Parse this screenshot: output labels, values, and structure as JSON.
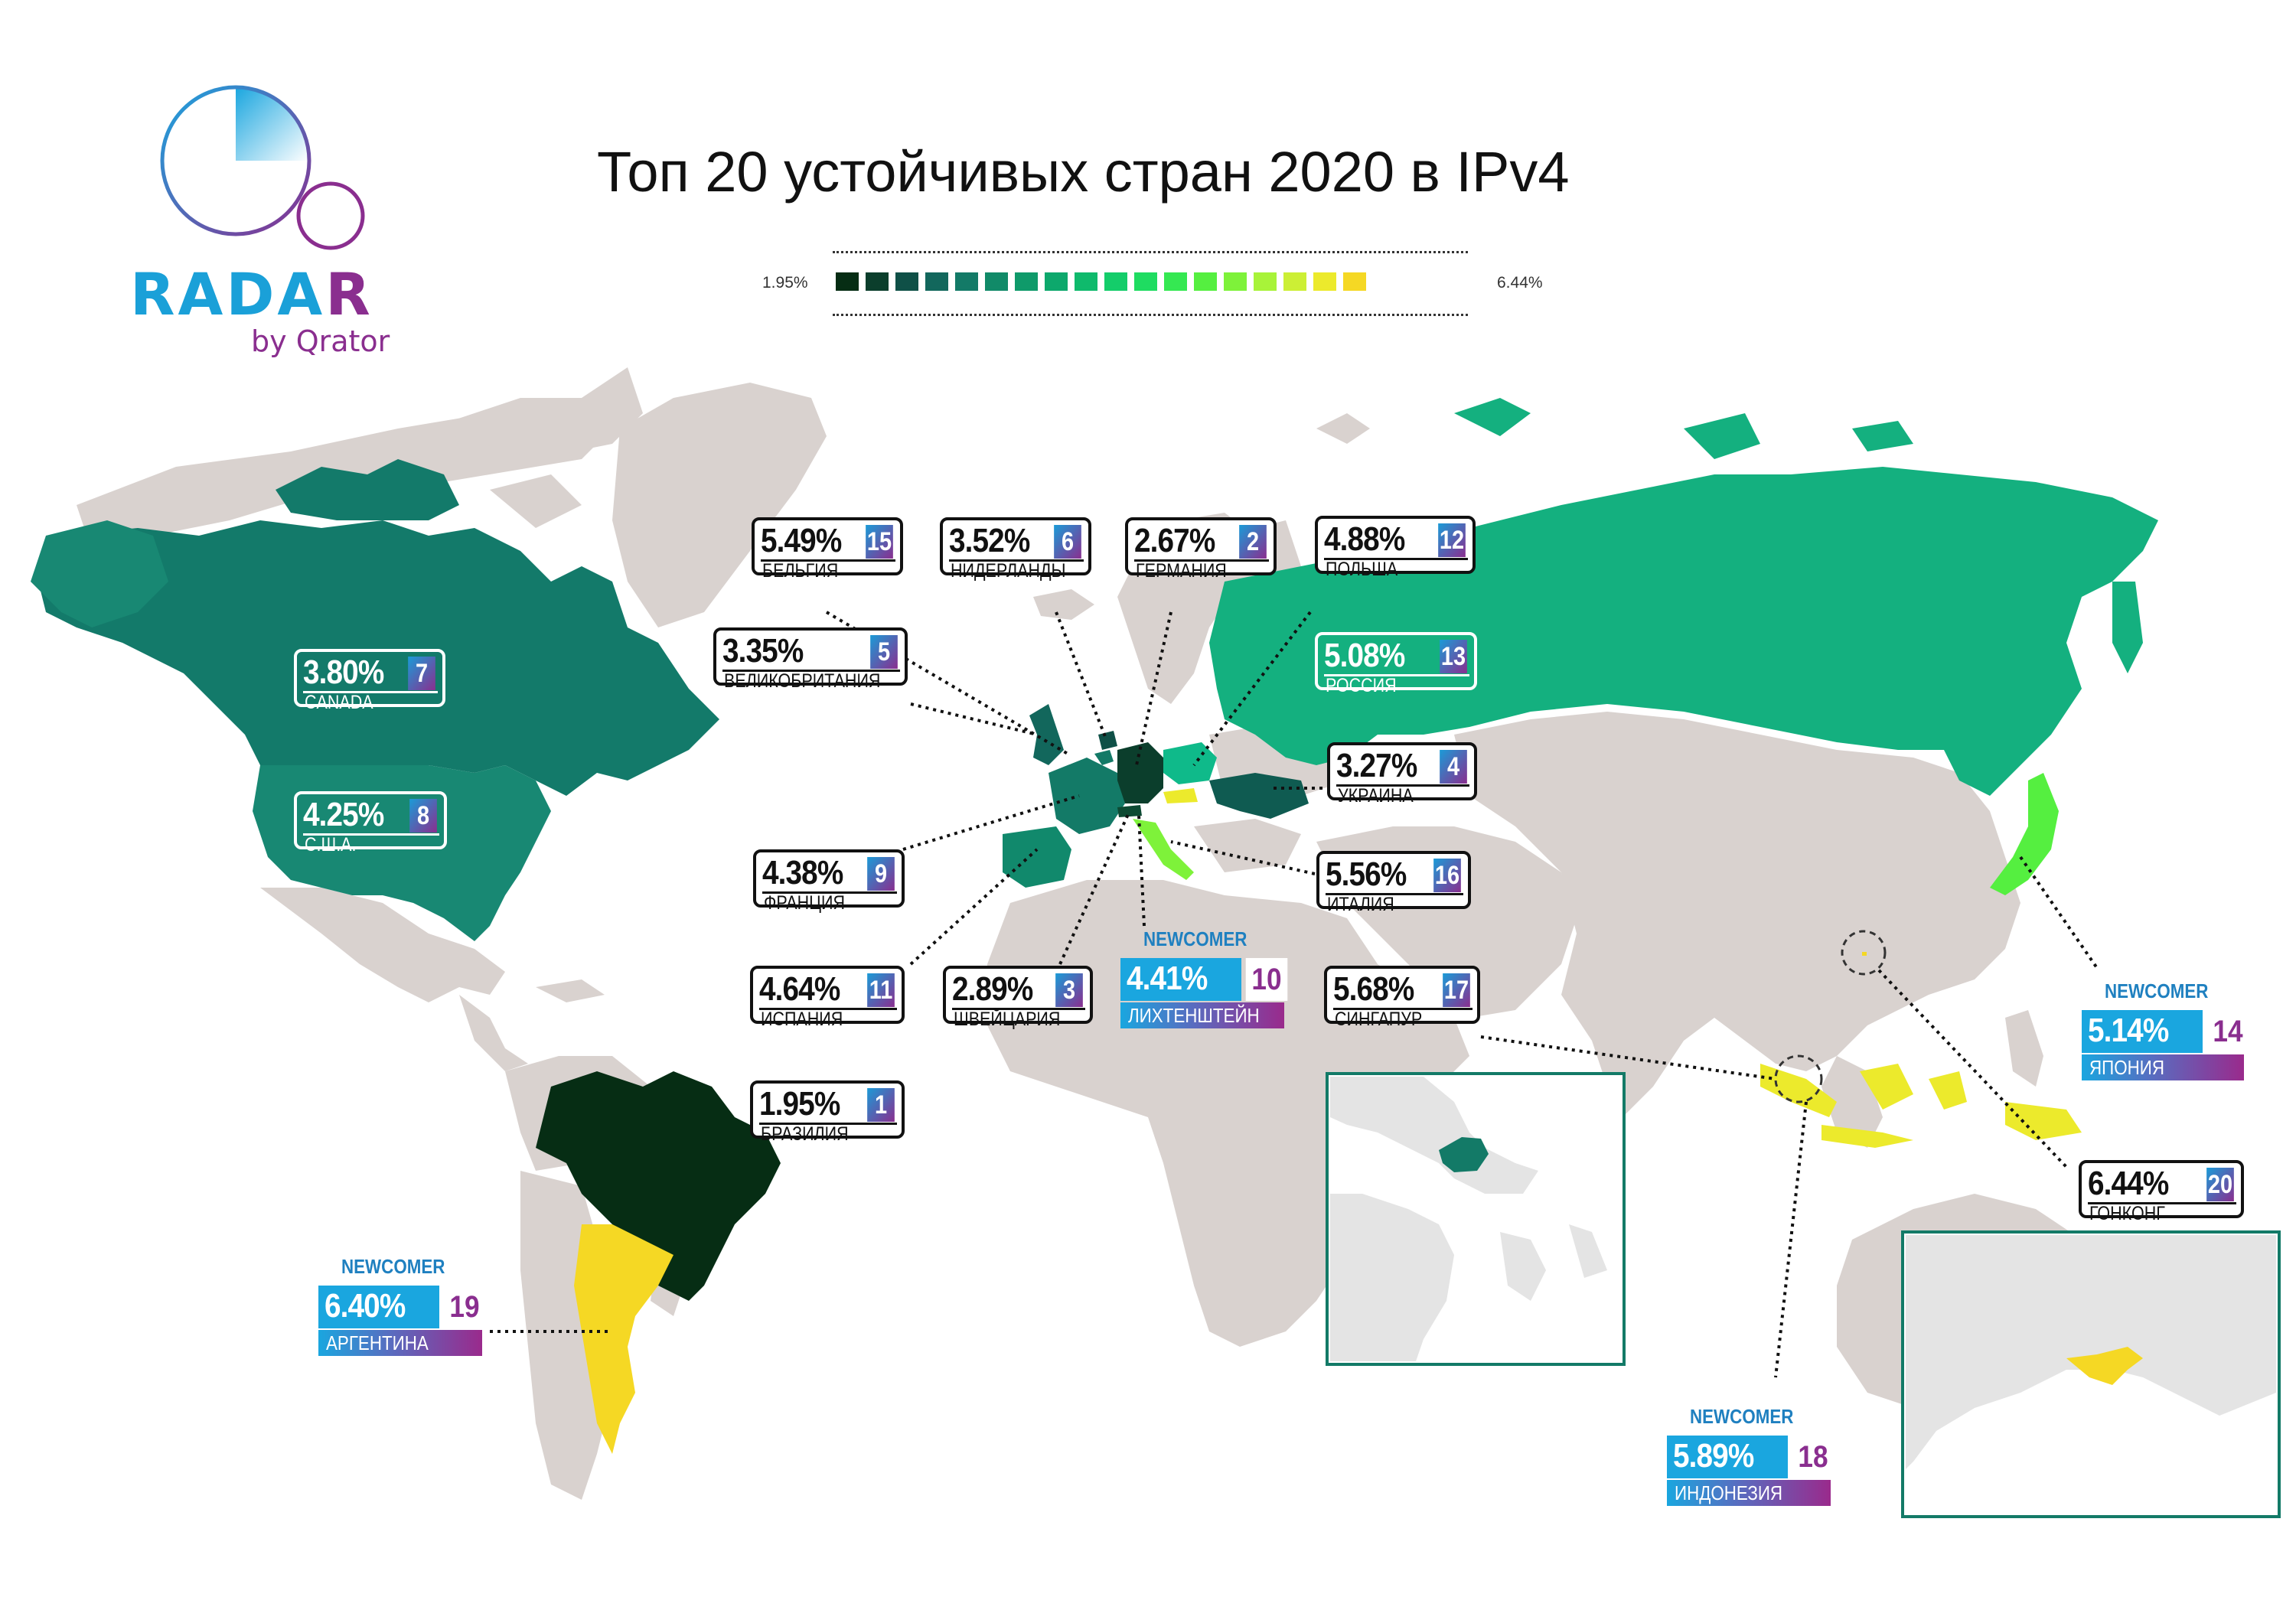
{
  "header": {
    "title": "Топ 20 устойчивых стран 2020 в IPv4",
    "scale_min": "1.95%",
    "scale_max": "6.44%",
    "scale_colors": [
      "#062d14",
      "#0b3e2c",
      "#0f5047",
      "#12675c",
      "#137a67",
      "#118a68",
      "#0f9a6a",
      "#0da86c",
      "#0fba6c",
      "#14cd6a",
      "#1fdc61",
      "#35e852",
      "#55ef40",
      "#7ef23a",
      "#a8f339",
      "#ccef35",
      "#ecea2c",
      "#f5d824"
    ]
  },
  "logo": {
    "word_a": "RADA",
    "word_b": "R",
    "sub": "by Qrator",
    "brand_blue": "#1aa0d8",
    "brand_purple": "#8a2e8f"
  },
  "countries": [
    {
      "id": "belgium",
      "pct": "5.49%",
      "rank": "15",
      "name": "БЕЛЬГИЯ"
    },
    {
      "id": "netherlands",
      "pct": "3.52%",
      "rank": "6",
      "name": "НИДЕРЛАНДЫ"
    },
    {
      "id": "germany",
      "pct": "2.67%",
      "rank": "2",
      "name": "ГЕРМАНИЯ"
    },
    {
      "id": "poland",
      "pct": "4.88%",
      "rank": "12",
      "name": "ПОЛЬША"
    },
    {
      "id": "uk",
      "pct": "3.35%",
      "rank": "5",
      "name": "ВЕЛИКОБРИТАНИЯ"
    },
    {
      "id": "russia",
      "pct": "5.08%",
      "rank": "13",
      "name": "РОССИЯ"
    },
    {
      "id": "canada",
      "pct": "3.80%",
      "rank": "7",
      "name": "CANADA"
    },
    {
      "id": "usa",
      "pct": "4.25%",
      "rank": "8",
      "name": "С.Ш.А."
    },
    {
      "id": "ukraine",
      "pct": "3.27%",
      "rank": "4",
      "name": "УКРАИНА"
    },
    {
      "id": "france",
      "pct": "4.38%",
      "rank": "9",
      "name": "ФРАНЦИЯ"
    },
    {
      "id": "italy",
      "pct": "5.56%",
      "rank": "16",
      "name": "ИТАЛИЯ"
    },
    {
      "id": "spain",
      "pct": "4.64%",
      "rank": "11",
      "name": "ИСПАНИЯ"
    },
    {
      "id": "switzerland",
      "pct": "2.89%",
      "rank": "3",
      "name": "ШВЕЙЦАРИЯ"
    },
    {
      "id": "singapore",
      "pct": "5.68%",
      "rank": "17",
      "name": "СИНГАПУР"
    },
    {
      "id": "brazil",
      "pct": "1.95%",
      "rank": "1",
      "name": "БРАЗИЛИЯ"
    },
    {
      "id": "hongkong",
      "pct": "6.44%",
      "rank": "20",
      "name": "ГОНКОНГ"
    }
  ],
  "newcomers": [
    {
      "id": "liechtenstein",
      "label": "NEWCOMER",
      "pct": "4.41%",
      "rank": "10",
      "name": "ЛИХТЕНШТЕЙН"
    },
    {
      "id": "japan",
      "label": "NEWCOMER",
      "pct": "5.14%",
      "rank": "14",
      "name": "ЯПОНИЯ"
    },
    {
      "id": "argentina",
      "label": "NEWCOMER",
      "pct": "6.40%",
      "rank": "19",
      "name": "АРГЕНТИНА"
    },
    {
      "id": "indonesia",
      "label": "NEWCOMER",
      "pct": "5.89%",
      "rank": "18",
      "name": "ИНДОНЕЗИЯ"
    }
  ]
}
